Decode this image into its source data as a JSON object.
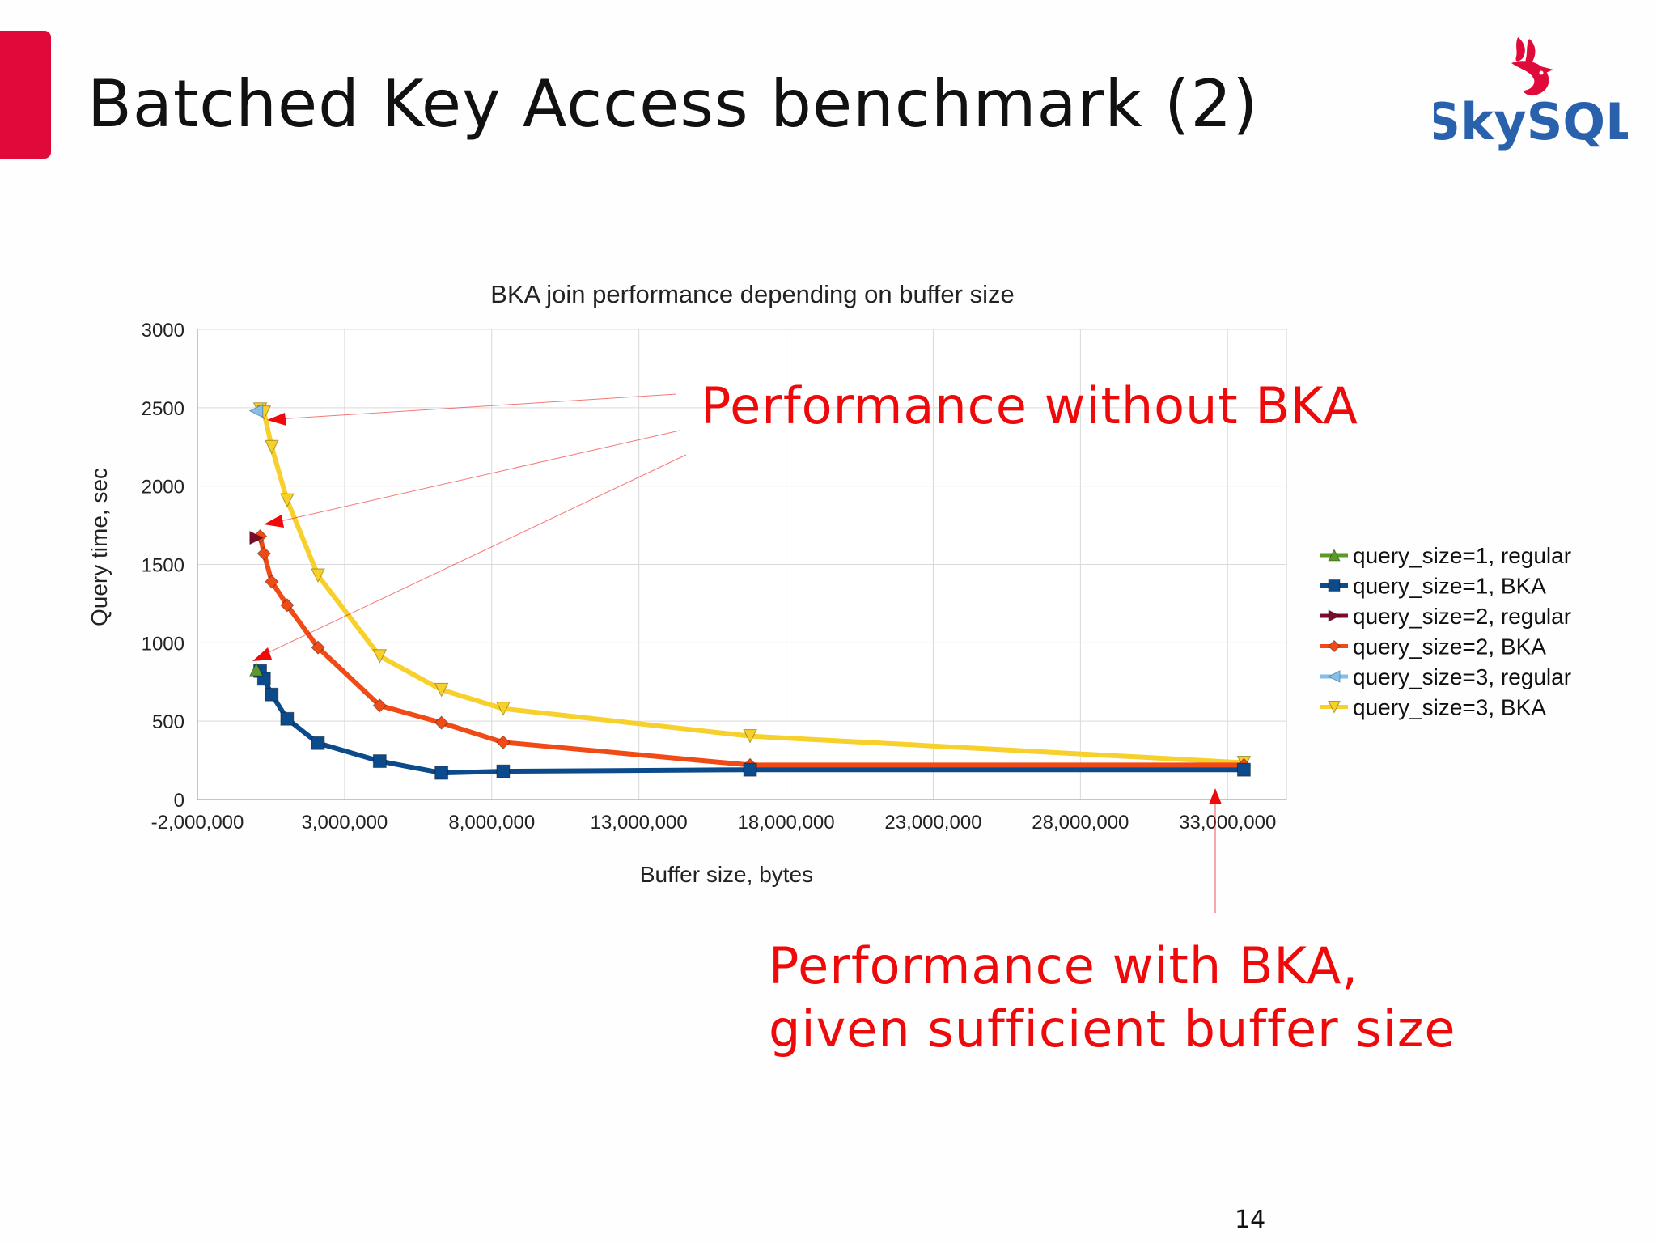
{
  "slide": {
    "title": "Batched Key Access benchmark (2)",
    "logo_text": "SkySQL",
    "page_number": "14",
    "accent_color": "#e00a3a"
  },
  "annotations": {
    "top": "Performance without BKA",
    "bottom_line1": "Performance with BKA,",
    "bottom_line2": "given sufficient buffer size",
    "color": "#ee0a0a"
  },
  "chart_data": {
    "type": "line",
    "title": "BKA join performance depending on buffer size",
    "xlabel": "Buffer size, bytes",
    "ylabel": "Query time, sec",
    "xlim": [
      -2000000,
      35000000
    ],
    "ylim": [
      0,
      3000
    ],
    "xticks": [
      -2000000,
      3000000,
      8000000,
      13000000,
      18000000,
      23000000,
      28000000,
      33000000
    ],
    "xtick_labels": [
      "-2,000,000",
      "3,000,000",
      "8,000,000",
      "13,000,000",
      "18,000,000",
      "23,000,000",
      "28,000,000",
      "33,000,000"
    ],
    "yticks": [
      0,
      500,
      1000,
      1500,
      2000,
      2500,
      3000
    ],
    "ytick_labels": [
      "0",
      "500",
      "1000",
      "1500",
      "2000",
      "2500",
      "3000"
    ],
    "grid": true,
    "legend_position": "right",
    "series": [
      {
        "name": "query_size=1, regular",
        "color": "#5b9a2a",
        "marker": "triangle-up",
        "x": [
          0
        ],
        "y": [
          830
        ]
      },
      {
        "name": "query_size=1, BKA",
        "color": "#0b4a8b",
        "marker": "square",
        "x": [
          131072,
          262144,
          524288,
          1048576,
          2097152,
          4194304,
          6291456,
          8388608,
          16777216,
          33554432
        ],
        "y": [
          820,
          770,
          670,
          515,
          360,
          245,
          170,
          180,
          190,
          190
        ]
      },
      {
        "name": "query_size=2, regular",
        "color": "#7e0a2a",
        "marker": "triangle-right",
        "x": [
          0
        ],
        "y": [
          1670
        ]
      },
      {
        "name": "query_size=2, BKA",
        "color": "#f04a16",
        "marker": "diamond",
        "x": [
          131072,
          262144,
          524288,
          1048576,
          2097152,
          4194304,
          6291456,
          8388608,
          16777216,
          33554432
        ],
        "y": [
          1680,
          1570,
          1390,
          1240,
          970,
          600,
          490,
          365,
          220,
          220
        ]
      },
      {
        "name": "query_size=3, regular",
        "color": "#84bfea",
        "marker": "triangle-left",
        "x": [
          0
        ],
        "y": [
          2480
        ]
      },
      {
        "name": "query_size=3, BKA",
        "color": "#f7d02c",
        "marker": "triangle-down",
        "x": [
          131072,
          262144,
          524288,
          1048576,
          2097152,
          4194304,
          6291456,
          8388608,
          16777216,
          33554432
        ],
        "y": [
          2490,
          2470,
          2250,
          1910,
          1430,
          915,
          700,
          580,
          405,
          235
        ]
      }
    ]
  }
}
